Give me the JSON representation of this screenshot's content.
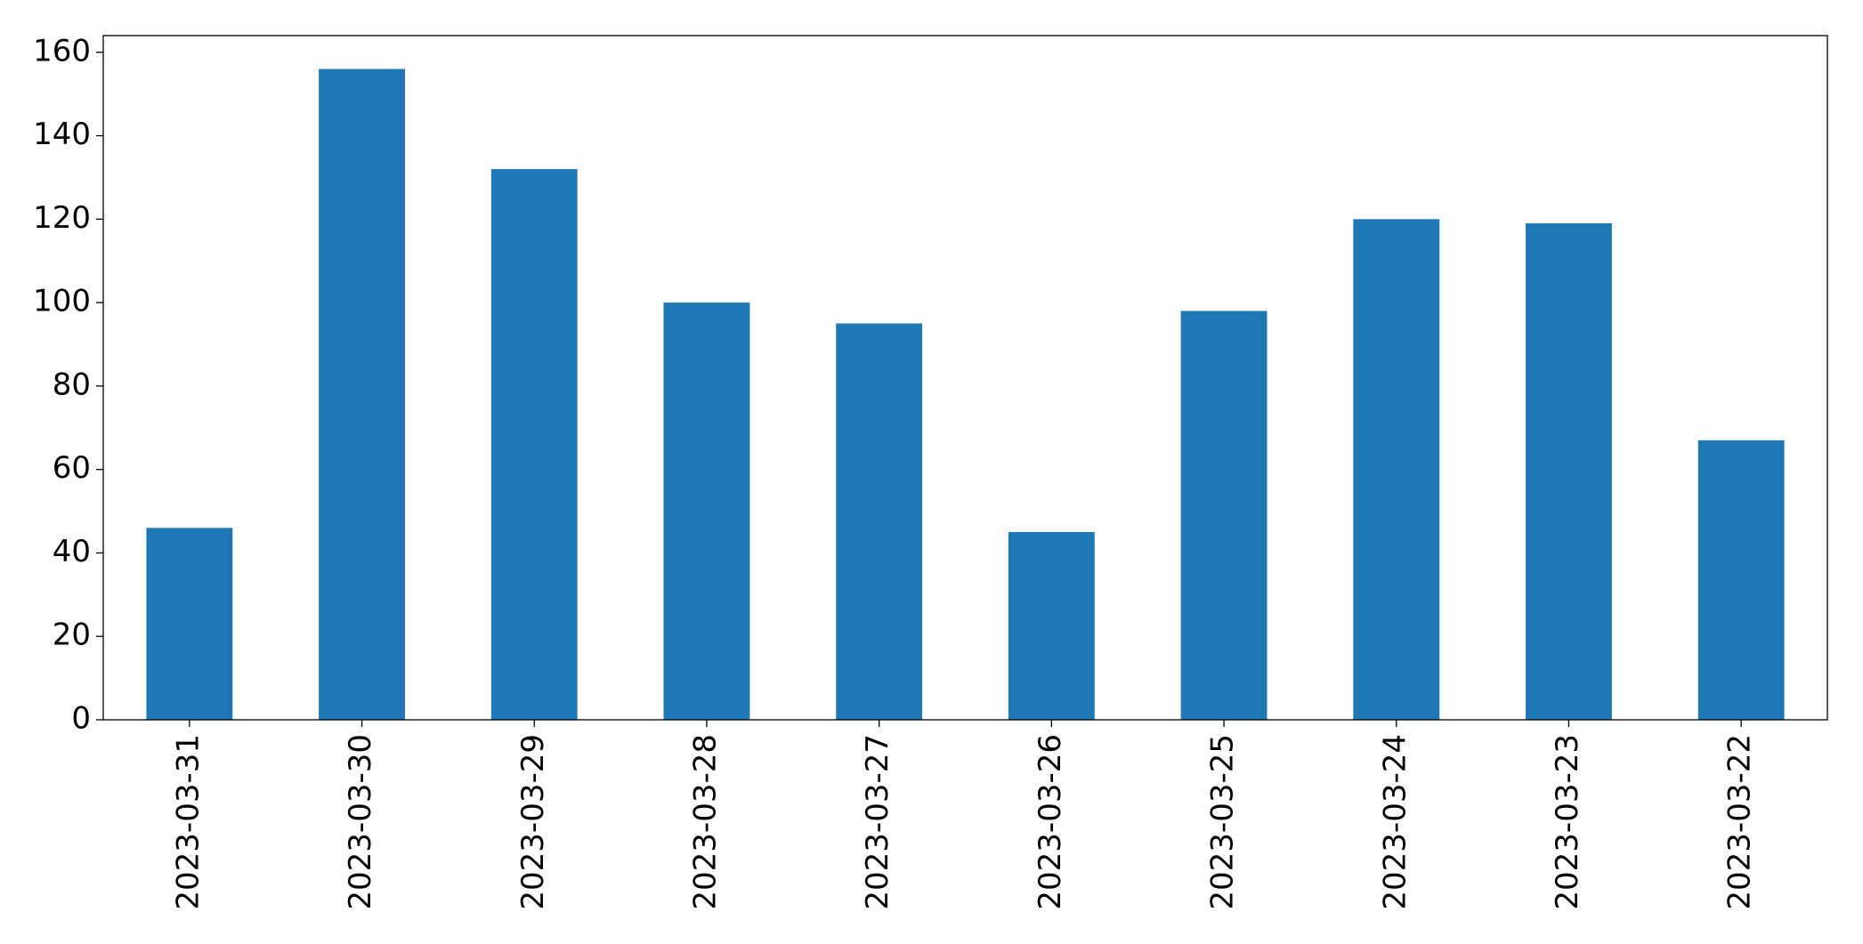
{
  "chart_data": {
    "type": "bar",
    "categories": [
      "2023-03-31",
      "2023-03-30",
      "2023-03-29",
      "2023-03-28",
      "2023-03-27",
      "2023-03-26",
      "2023-03-25",
      "2023-03-24",
      "2023-03-23",
      "2023-03-22"
    ],
    "values": [
      46,
      156,
      132,
      100,
      95,
      45,
      98,
      120,
      119,
      67
    ],
    "color": "#1f77b4",
    "ylim": [
      0,
      164
    ],
    "yticks": [
      0,
      20,
      40,
      60,
      80,
      100,
      120,
      140,
      160
    ],
    "grid": false
  }
}
